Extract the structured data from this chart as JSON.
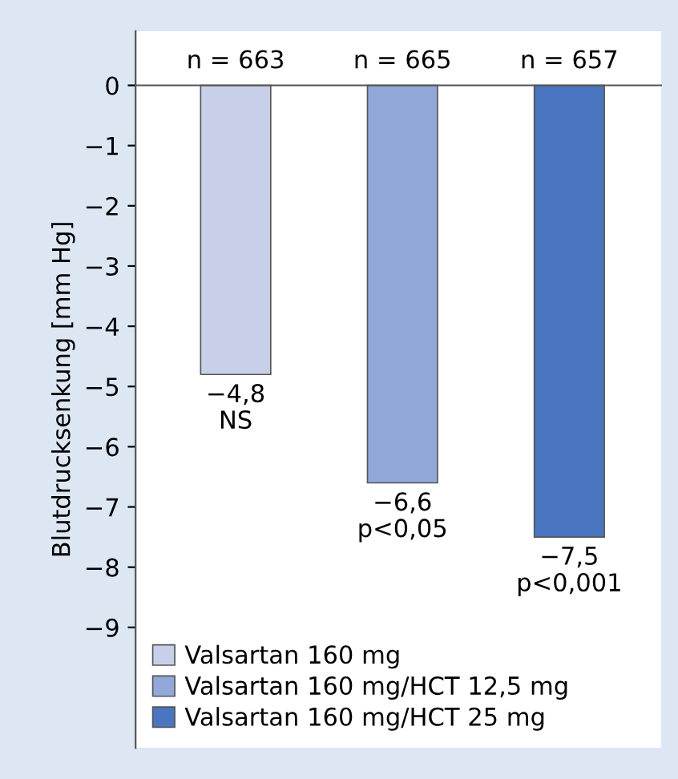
{
  "chart_data": {
    "type": "bar",
    "ylabel": "Blutdrucksenkung [mm Hg]",
    "categories": [
      null,
      null,
      null
    ],
    "series": [
      {
        "name": "Valsartan 160 mg",
        "color": "#c8cfe9",
        "values": [
          -4.8,
          null,
          null
        ],
        "value_labels": [
          "−4,8\nNS",
          null,
          null
        ]
      },
      {
        "name": "Valsartan 160 mg/HCT 12,5 mg",
        "color": "#91a8d8",
        "values": [
          null,
          -6.6,
          null
        ],
        "value_labels": [
          null,
          "−6,6\np<0,05",
          null
        ]
      },
      {
        "name": "Valsartan 160 mg/HCT 25 mg",
        "color": "#4a75c0",
        "values": [
          null,
          null,
          -7.5
        ],
        "value_labels": [
          null,
          null,
          "−7,5\np<0,001"
        ]
      }
    ],
    "annotations": [
      {
        "text": "n = 663",
        "y": 0
      },
      {
        "text": "n = 665",
        "y": 0
      },
      {
        "text": "n = 657",
        "y": 0
      }
    ],
    "ylim": [
      -11,
      0.9
    ],
    "yticks": [
      0,
      {
        "value": -1,
        "label": "−1"
      },
      {
        "value": -2,
        "label": "−2"
      },
      {
        "value": -3,
        "label": "−3"
      },
      {
        "value": -4,
        "label": "−4"
      },
      {
        "value": -5,
        "label": "−5"
      },
      {
        "value": -6,
        "label": "−6"
      },
      {
        "value": -7,
        "label": "−7"
      },
      {
        "value": -8,
        "label": "−8"
      },
      {
        "value": -9,
        "label": "−9"
      }
    ],
    "tick_labels": "y",
    "legend": "bottom left"
  }
}
